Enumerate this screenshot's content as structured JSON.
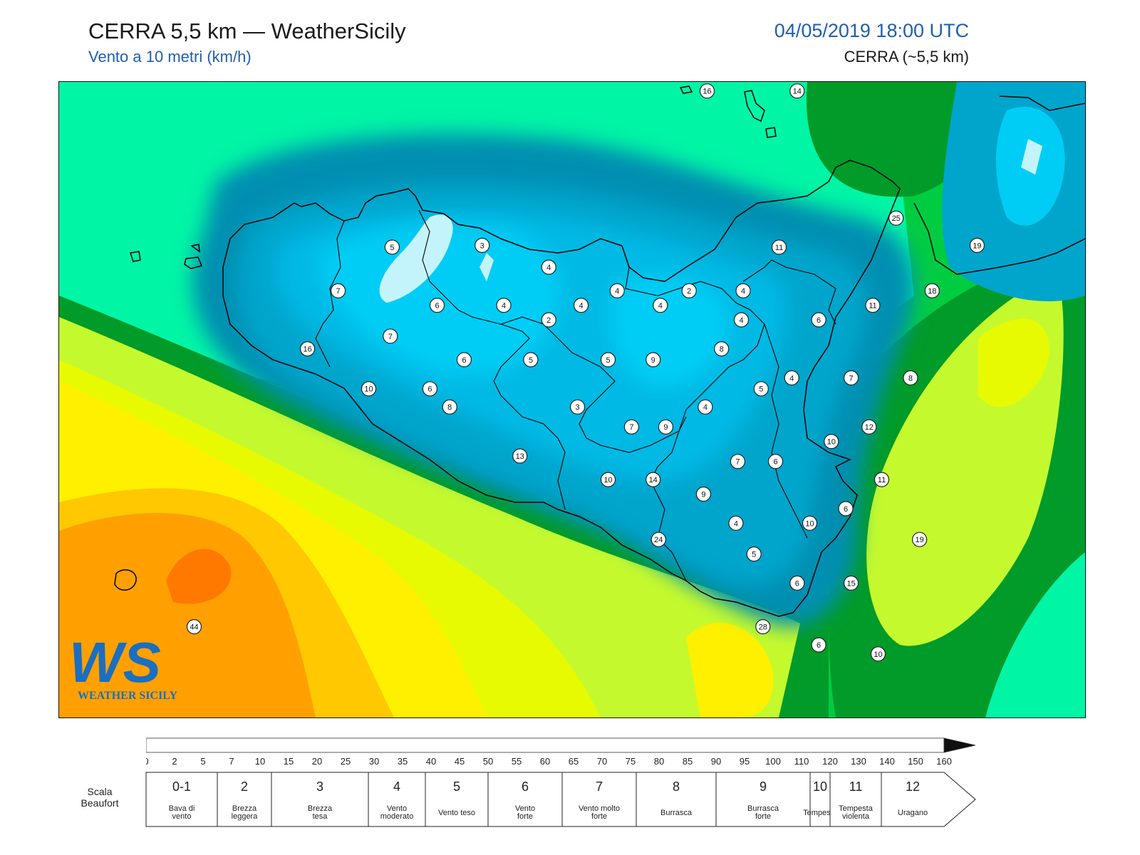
{
  "header": {
    "title": "CERRA 5,5 km — WeatherSicily",
    "subtitle": "Vento a 10 metri (km/h)",
    "datetime": "04/05/2019 18:00 UTC",
    "model": "CERRA (~5,5 km)"
  },
  "logo": {
    "letters": "WS",
    "text": "WEATHER SICILY"
  },
  "stations": [
    {
      "value": "16",
      "lon": 14.8,
      "lat": 38.9
    },
    {
      "value": "14",
      "lon": 15.3,
      "lat": 38.9
    },
    {
      "value": "25",
      "lon": 15.85,
      "lat": 38.2
    },
    {
      "value": "19",
      "lon": 16.3,
      "lat": 38.05
    },
    {
      "value": "5",
      "lon": 13.05,
      "lat": 38.04
    },
    {
      "value": "3",
      "lon": 13.55,
      "lat": 38.05
    },
    {
      "value": "4",
      "lon": 13.92,
      "lat": 37.93
    },
    {
      "value": "11",
      "lon": 15.2,
      "lat": 38.04
    },
    {
      "value": "7",
      "lon": 12.75,
      "lat": 37.8
    },
    {
      "value": "4",
      "lon": 14.3,
      "lat": 37.8
    },
    {
      "value": "2",
      "lon": 14.7,
      "lat": 37.8
    },
    {
      "value": "4",
      "lon": 14.1,
      "lat": 37.72
    },
    {
      "value": "4",
      "lon": 14.54,
      "lat": 37.72
    },
    {
      "value": "4",
      "lon": 15.0,
      "lat": 37.8
    },
    {
      "value": "18",
      "lon": 16.05,
      "lat": 37.8
    },
    {
      "value": "6",
      "lon": 13.3,
      "lat": 37.72
    },
    {
      "value": "4",
      "lon": 13.67,
      "lat": 37.72
    },
    {
      "value": "2",
      "lon": 13.92,
      "lat": 37.64
    },
    {
      "value": "4",
      "lon": 14.99,
      "lat": 37.64
    },
    {
      "value": "6",
      "lon": 15.42,
      "lat": 37.64
    },
    {
      "value": "11",
      "lon": 15.72,
      "lat": 37.72
    },
    {
      "value": "7",
      "lon": 13.04,
      "lat": 37.55
    },
    {
      "value": "16",
      "lon": 12.58,
      "lat": 37.48
    },
    {
      "value": "8",
      "lon": 14.88,
      "lat": 37.48
    },
    {
      "value": "6",
      "lon": 13.45,
      "lat": 37.42
    },
    {
      "value": "5",
      "lon": 13.82,
      "lat": 37.42
    },
    {
      "value": "5",
      "lon": 14.25,
      "lat": 37.42
    },
    {
      "value": "9",
      "lon": 14.5,
      "lat": 37.42
    },
    {
      "value": "4",
      "lon": 15.27,
      "lat": 37.32
    },
    {
      "value": "7",
      "lon": 15.6,
      "lat": 37.32
    },
    {
      "value": "8",
      "lon": 15.93,
      "lat": 37.32
    },
    {
      "value": "10",
      "lon": 12.92,
      "lat": 37.26
    },
    {
      "value": "6",
      "lon": 13.26,
      "lat": 37.26
    },
    {
      "value": "5",
      "lon": 15.1,
      "lat": 37.26
    },
    {
      "value": "8",
      "lon": 13.37,
      "lat": 37.16
    },
    {
      "value": "3",
      "lon": 14.08,
      "lat": 37.16
    },
    {
      "value": "4",
      "lon": 14.79,
      "lat": 37.16
    },
    {
      "value": "7",
      "lon": 14.38,
      "lat": 37.05
    },
    {
      "value": "9",
      "lon": 14.57,
      "lat": 37.05
    },
    {
      "value": "12",
      "lon": 15.7,
      "lat": 37.05
    },
    {
      "value": "10",
      "lon": 15.49,
      "lat": 36.97
    },
    {
      "value": "13",
      "lon": 13.76,
      "lat": 36.89
    },
    {
      "value": "7",
      "lon": 14.97,
      "lat": 36.86
    },
    {
      "value": "6",
      "lon": 15.18,
      "lat": 36.86
    },
    {
      "value": "10",
      "lon": 14.25,
      "lat": 36.76
    },
    {
      "value": "14",
      "lon": 14.5,
      "lat": 36.76
    },
    {
      "value": "11",
      "lon": 15.77,
      "lat": 36.76
    },
    {
      "value": "9",
      "lon": 14.78,
      "lat": 36.68
    },
    {
      "value": "6",
      "lon": 15.57,
      "lat": 36.6
    },
    {
      "value": "4",
      "lon": 14.96,
      "lat": 36.52
    },
    {
      "value": "10",
      "lon": 15.37,
      "lat": 36.52
    },
    {
      "value": "24",
      "lon": 14.53,
      "lat": 36.43
    },
    {
      "value": "5",
      "lon": 15.06,
      "lat": 36.35
    },
    {
      "value": "19",
      "lon": 15.98,
      "lat": 36.43
    },
    {
      "value": "6",
      "lon": 15.3,
      "lat": 36.19
    },
    {
      "value": "15",
      "lon": 15.6,
      "lat": 36.19
    },
    {
      "value": "44",
      "lon": 11.95,
      "lat": 35.95
    },
    {
      "value": "28",
      "lon": 15.11,
      "lat": 35.95
    },
    {
      "value": "6",
      "lon": 15.42,
      "lat": 35.85
    },
    {
      "value": "10",
      "lon": 15.75,
      "lat": 35.8
    }
  ],
  "colorbar": {
    "ticks": [
      "0",
      "2",
      "5",
      "7",
      "10",
      "15",
      "20",
      "25",
      "30",
      "35",
      "40",
      "45",
      "50",
      "55",
      "60",
      "65",
      "70",
      "75",
      "80",
      "85",
      "90",
      "95",
      "100",
      "110",
      "120",
      "130",
      "140",
      "150",
      "160"
    ],
    "colors": [
      "#c4f4fb",
      "#00e2ff",
      "#00cdf5",
      "#00b9e4",
      "#00a5cc",
      "#008fb1",
      "#00f5a5",
      "#00cc42",
      "#009b28",
      "#c4fa2d",
      "#e8fa00",
      "#fff000",
      "#ffc800",
      "#ffa000",
      "#ff7800",
      "#ff5000",
      "#ff2800",
      "#ec0a0a",
      "#cc0a2a",
      "#aa0a2a",
      "#880a1a",
      "#660a0a",
      "#4a0a0a",
      "#7a2ac8",
      "#b040d8",
      "#e020e0",
      "#808080",
      "#606060",
      "#101010",
      "#8a4a2a",
      "#c88048"
    ]
  },
  "beaufort": {
    "label": "Scala Beaufort",
    "classes": [
      {
        "num": "0-1",
        "name": "Bava di vento"
      },
      {
        "num": "2",
        "name": "Brezza leggera"
      },
      {
        "num": "3",
        "name": "Brezza tesa"
      },
      {
        "num": "4",
        "name": "Vento moderato"
      },
      {
        "num": "5",
        "name": "Vento teso"
      },
      {
        "num": "6",
        "name": "Vento forte"
      },
      {
        "num": "7",
        "name": "Vento molto forte"
      },
      {
        "num": "8",
        "name": "Burrasca"
      },
      {
        "num": "9",
        "name": "Burrasca forte"
      },
      {
        "num": "10",
        "name": "Tempesta"
      },
      {
        "num": "11",
        "name": "Tempesta violenta"
      },
      {
        "num": "12",
        "name": "Uragano"
      }
    ]
  }
}
